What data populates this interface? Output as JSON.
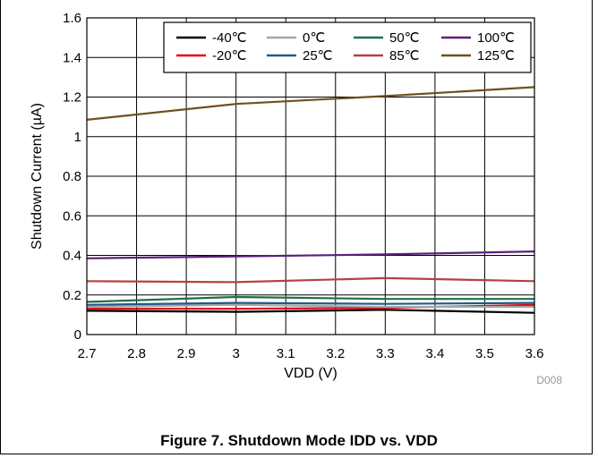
{
  "chart_data": {
    "type": "line",
    "xlabel": "VDD (V)",
    "ylabel": "Shutdown Current (µA)",
    "xlim": [
      2.7,
      3.6
    ],
    "ylim": [
      0,
      1.6
    ],
    "x_ticks": [
      "2.7",
      "2.8",
      "2.9",
      "3",
      "3.1",
      "3.2",
      "3.3",
      "3.4",
      "3.5",
      "3.6"
    ],
    "y_ticks": [
      "0",
      "0.2",
      "0.4",
      "0.6",
      "0.8",
      "1",
      "1.2",
      "1.4",
      "1.6"
    ],
    "grid": true,
    "legend_position": "top-right",
    "x": [
      2.7,
      3.0,
      3.3,
      3.6
    ],
    "series": [
      {
        "name": "-40℃",
        "color": "#000000",
        "values": [
          0.12,
          0.115,
          0.125,
          0.11
        ]
      },
      {
        "name": "-20℃",
        "color": "#e3000f",
        "values": [
          0.13,
          0.13,
          0.135,
          0.15
        ]
      },
      {
        "name": "0℃",
        "color": "#a6a6a6",
        "values": [
          0.14,
          0.15,
          0.14,
          0.14
        ]
      },
      {
        "name": "25℃",
        "color": "#215a86",
        "values": [
          0.15,
          0.16,
          0.155,
          0.16
        ]
      },
      {
        "name": "50℃",
        "color": "#1e7048",
        "values": [
          0.165,
          0.19,
          0.18,
          0.18
        ]
      },
      {
        "name": "85℃",
        "color": "#b5413f",
        "values": [
          0.27,
          0.265,
          0.285,
          0.27
        ]
      },
      {
        "name": "100℃",
        "color": "#5a2179",
        "values": [
          0.385,
          0.395,
          0.405,
          0.42
        ]
      },
      {
        "name": "125℃",
        "color": "#6e5022",
        "values": [
          1.085,
          1.165,
          1.205,
          1.25
        ]
      }
    ],
    "legend_rows": [
      [
        "-40℃",
        "0℃",
        "50℃",
        "100℃"
      ],
      [
        "-20℃",
        "25℃",
        "85℃",
        "125℃"
      ]
    ]
  },
  "figure": {
    "caption": "Figure 7. Shutdown Mode IDD vs. VDD",
    "code": "D008"
  }
}
